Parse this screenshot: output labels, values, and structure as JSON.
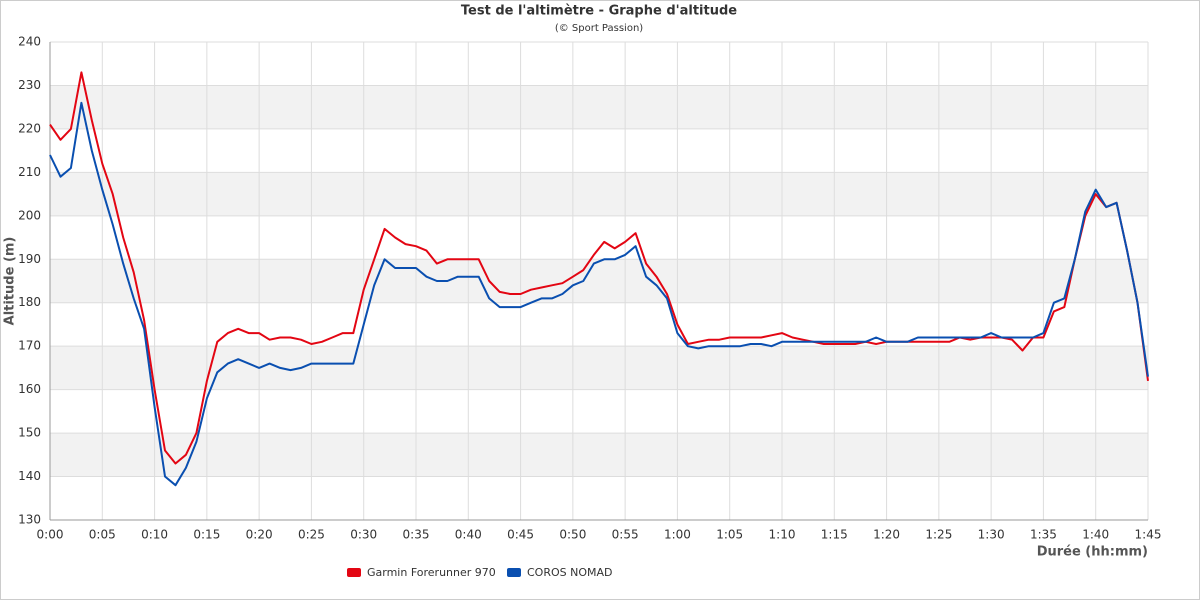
{
  "chart_data": {
    "type": "line",
    "title": "Test de l'altimètre - Graphe d'altitude",
    "subtitle": "(© Sport Passion)",
    "y_label": "Altitude (m)",
    "x_label": "Durée (hh:mm)",
    "x": [
      0,
      1,
      2,
      3,
      4,
      5,
      6,
      7,
      8,
      9,
      10,
      11,
      12,
      13,
      14,
      15,
      16,
      17,
      18,
      19,
      20,
      21,
      22,
      23,
      24,
      25,
      26,
      27,
      28,
      29,
      30,
      31,
      32,
      33,
      34,
      35,
      36,
      37,
      38,
      39,
      40,
      41,
      42,
      43,
      44,
      45,
      46,
      47,
      48,
      49,
      50,
      51,
      52,
      53,
      54,
      55,
      56,
      57,
      58,
      59,
      60,
      61,
      62,
      63,
      64,
      65,
      66,
      67,
      68,
      69,
      70,
      71,
      72,
      73,
      74,
      75,
      76,
      77,
      78,
      79,
      80,
      81,
      82,
      83,
      84,
      85,
      86,
      87,
      88,
      89,
      90,
      91,
      92,
      93,
      94,
      95,
      96,
      97,
      98,
      99,
      100,
      101,
      102,
      103,
      104,
      105
    ],
    "series": [
      {
        "name": "Garmin Forerunner 970",
        "color": "#e30613",
        "values": [
          221,
          217.5,
          220,
          233,
          222,
          212,
          205,
          195,
          187,
          176,
          160,
          146,
          143,
          145,
          150,
          162,
          171,
          173,
          174,
          173,
          173,
          171.5,
          172,
          172,
          171.5,
          170.5,
          171,
          172,
          173,
          173,
          183,
          190,
          197,
          195,
          193.5,
          193,
          192,
          189,
          190,
          190,
          190,
          190,
          185,
          182.5,
          182,
          182,
          183,
          183.5,
          184,
          184.5,
          186,
          187.5,
          191,
          194,
          192.5,
          194,
          196,
          189,
          186,
          182,
          175,
          170.5,
          171,
          171.5,
          171.5,
          172,
          172,
          172,
          172,
          172.5,
          173,
          172,
          171.5,
          171,
          170.5,
          170.5,
          170.5,
          170.5,
          171,
          170.5,
          171,
          171,
          171,
          171,
          171,
          171,
          171,
          172,
          171.5,
          172,
          172,
          172,
          171.5,
          169,
          172,
          172,
          178,
          179,
          190,
          200,
          205,
          202,
          203,
          192,
          180,
          162
        ]
      },
      {
        "name": "COROS NOMAD",
        "color": "#0a4fb0",
        "values": [
          214,
          209,
          211,
          226,
          215,
          206,
          198,
          189,
          181,
          174,
          156,
          140,
          138,
          142,
          148,
          158,
          164,
          166,
          167,
          166,
          165,
          166,
          165,
          164.5,
          165,
          166,
          166,
          166,
          166,
          166,
          175,
          184,
          190,
          188,
          188,
          188,
          186,
          185,
          185,
          186,
          186,
          186,
          181,
          179,
          179,
          179,
          180,
          181,
          181,
          182,
          184,
          185,
          189,
          190,
          190,
          191,
          193,
          186,
          184,
          181,
          173,
          170,
          169.5,
          170,
          170,
          170,
          170,
          170.5,
          170.5,
          170,
          171,
          171,
          171,
          171,
          171,
          171,
          171,
          171,
          171,
          172,
          171,
          171,
          171,
          172,
          172,
          172,
          172,
          172,
          172,
          172,
          173,
          172,
          172,
          172,
          172,
          173,
          180,
          181,
          190,
          201,
          206,
          202,
          203,
          192,
          180,
          163
        ]
      }
    ],
    "xlim": [
      0,
      105
    ],
    "xticks": [
      {
        "value": 0,
        "label": "0:00"
      },
      {
        "value": 5,
        "label": "0:05"
      },
      {
        "value": 10,
        "label": "0:10"
      },
      {
        "value": 15,
        "label": "0:15"
      },
      {
        "value": 20,
        "label": "0:20"
      },
      {
        "value": 25,
        "label": "0:25"
      },
      {
        "value": 30,
        "label": "0:30"
      },
      {
        "value": 35,
        "label": "0:35"
      },
      {
        "value": 40,
        "label": "0:40"
      },
      {
        "value": 45,
        "label": "0:45"
      },
      {
        "value": 50,
        "label": "0:50"
      },
      {
        "value": 55,
        "label": "0:55"
      },
      {
        "value": 60,
        "label": "1:00"
      },
      {
        "value": 65,
        "label": "1:05"
      },
      {
        "value": 70,
        "label": "1:10"
      },
      {
        "value": 75,
        "label": "1:15"
      },
      {
        "value": 80,
        "label": "1:20"
      },
      {
        "value": 85,
        "label": "1:25"
      },
      {
        "value": 90,
        "label": "1:30"
      },
      {
        "value": 95,
        "label": "1:35"
      },
      {
        "value": 100,
        "label": "1:40"
      },
      {
        "value": 105,
        "label": "1:45"
      }
    ],
    "ylim": [
      130,
      240
    ],
    "yticks": [
      130,
      140,
      150,
      160,
      170,
      180,
      190,
      200,
      210,
      220,
      230,
      240
    ],
    "grid": true,
    "legend": "bottom"
  }
}
